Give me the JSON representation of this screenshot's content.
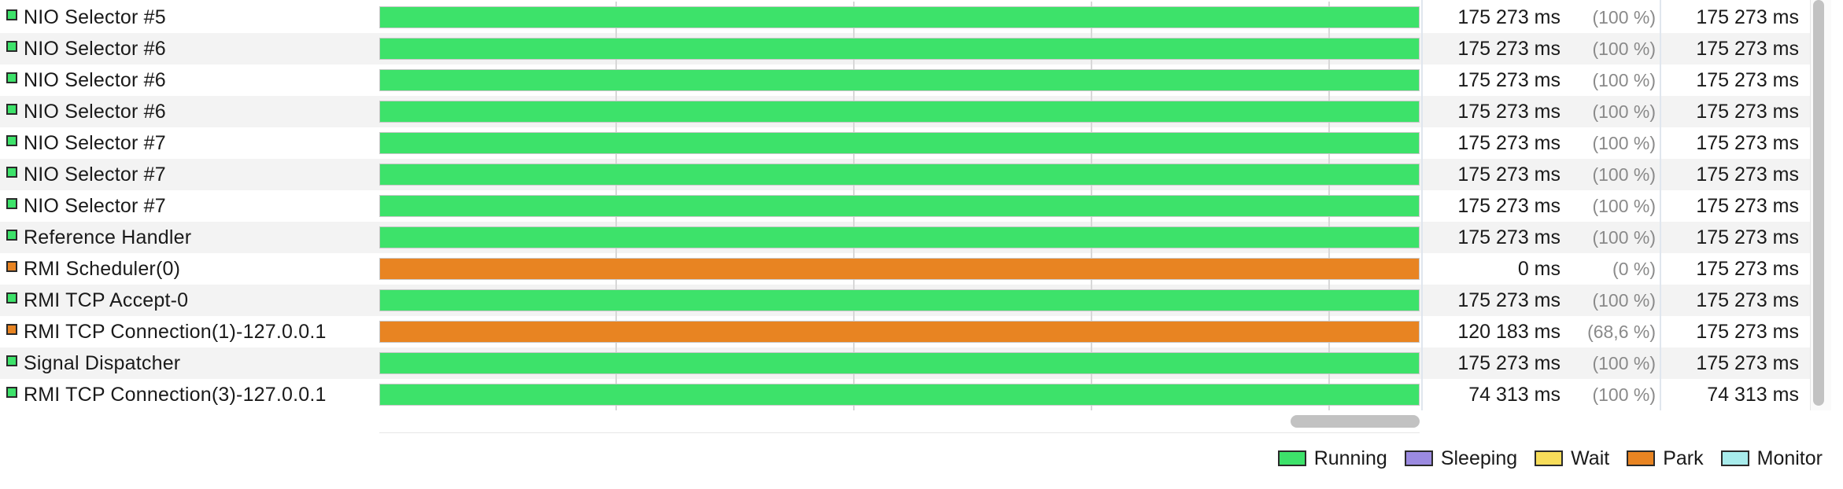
{
  "colors": {
    "running": "#3de26a",
    "sleeping": "#9b8ae0",
    "wait": "#f7dd5a",
    "park": "#e88422",
    "monitor": "#a8ecec"
  },
  "threads": [
    {
      "name": "NIO Selector #5",
      "state": "running",
      "time": "175 273 ms",
      "percent": "(100 %)",
      "total": "175 273 ms"
    },
    {
      "name": "NIO Selector #6",
      "state": "running",
      "time": "175 273 ms",
      "percent": "(100 %)",
      "total": "175 273 ms"
    },
    {
      "name": "NIO Selector #6",
      "state": "running",
      "time": "175 273 ms",
      "percent": "(100 %)",
      "total": "175 273 ms"
    },
    {
      "name": "NIO Selector #6",
      "state": "running",
      "time": "175 273 ms",
      "percent": "(100 %)",
      "total": "175 273 ms"
    },
    {
      "name": "NIO Selector #7",
      "state": "running",
      "time": "175 273 ms",
      "percent": "(100 %)",
      "total": "175 273 ms"
    },
    {
      "name": "NIO Selector #7",
      "state": "running",
      "time": "175 273 ms",
      "percent": "(100 %)",
      "total": "175 273 ms"
    },
    {
      "name": "NIO Selector #7",
      "state": "running",
      "time": "175 273 ms",
      "percent": "(100 %)",
      "total": "175 273 ms"
    },
    {
      "name": "Reference Handler",
      "state": "running",
      "time": "175 273 ms",
      "percent": "(100 %)",
      "total": "175 273 ms"
    },
    {
      "name": "RMI Scheduler(0)",
      "state": "park",
      "time": "0 ms",
      "percent": "(0 %)",
      "total": "175 273 ms"
    },
    {
      "name": "RMI TCP Accept-0",
      "state": "running",
      "time": "175 273 ms",
      "percent": "(100 %)",
      "total": "175 273 ms"
    },
    {
      "name": "RMI TCP Connection(1)-127.0.0.1",
      "state": "park",
      "time": "120 183 ms",
      "percent": "(68,6 %)",
      "total": "175 273 ms"
    },
    {
      "name": "Signal Dispatcher",
      "state": "running",
      "time": "175 273 ms",
      "percent": "(100 %)",
      "total": "175 273 ms"
    },
    {
      "name": "RMI TCP Connection(3)-127.0.0.1",
      "state": "running",
      "time": "74 313 ms",
      "percent": "(100 %)",
      "total": "74 313 ms"
    }
  ],
  "legend": [
    {
      "key": "running",
      "label": "Running"
    },
    {
      "key": "sleeping",
      "label": "Sleeping"
    },
    {
      "key": "wait",
      "label": "Wait"
    },
    {
      "key": "park",
      "label": "Park"
    },
    {
      "key": "monitor",
      "label": "Monitor"
    }
  ]
}
